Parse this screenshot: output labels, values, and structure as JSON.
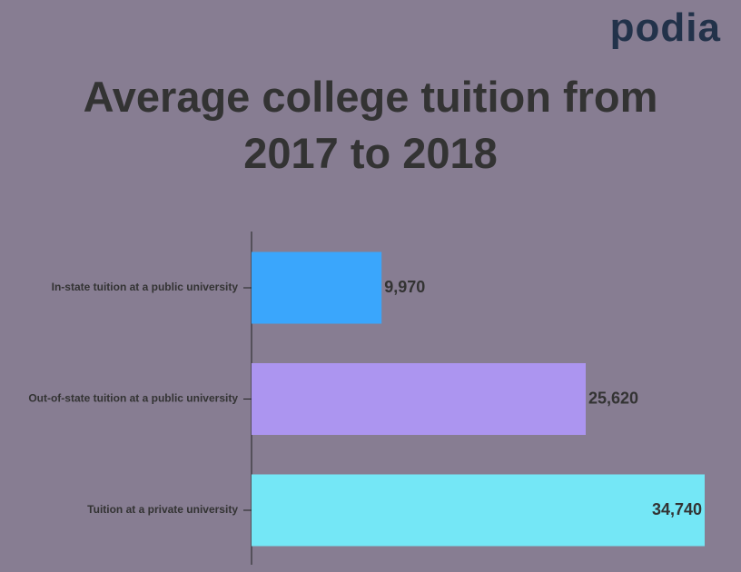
{
  "logo": "podia",
  "chart_data": {
    "type": "hbar",
    "title": "Average college tuition from 2017 to 2018",
    "categories": [
      "In-state tuition at a public university",
      "Out-of-state tuition at a public university",
      "Tuition at a private university"
    ],
    "values": [
      9970,
      25620,
      34740
    ],
    "value_labels": [
      "9,970",
      "25,620",
      "34,740"
    ],
    "colors": [
      "#3aa6fc",
      "#ac95f0",
      "#74e7f6"
    ]
  }
}
